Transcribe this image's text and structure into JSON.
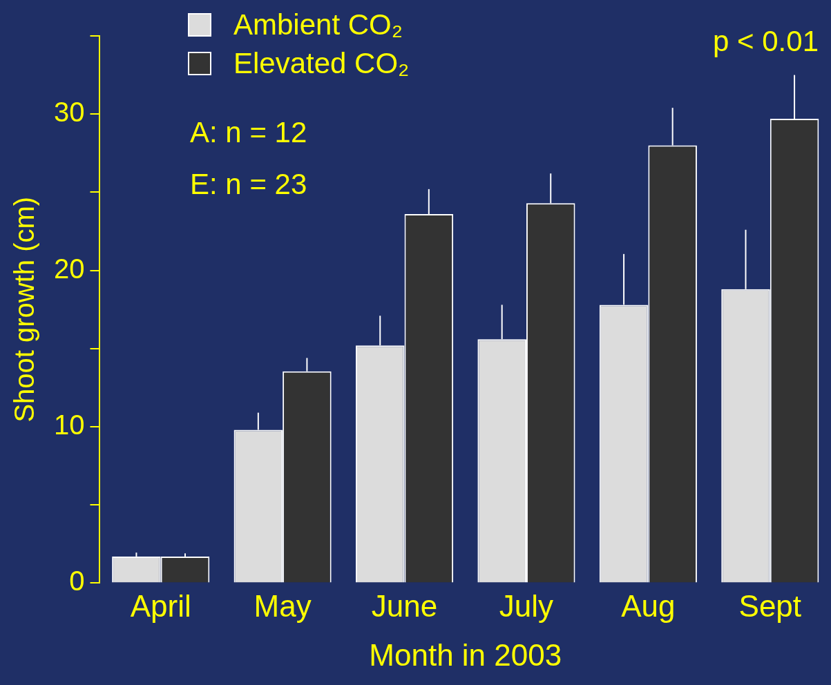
{
  "chart_data": {
    "type": "bar",
    "xlabel": "Month in 2003",
    "ylabel": "Shoot growth (cm)",
    "categories": [
      "April",
      "May",
      "June",
      "July",
      "Aug",
      "Sept"
    ],
    "series": [
      {
        "name": "Ambient CO₂",
        "color": "#dcdcdc",
        "values": [
          1.7,
          9.8,
          15.2,
          15.6,
          17.8,
          18.8
        ],
        "errors": [
          [
            1.7,
            1.95
          ],
          [
            9.8,
            10.9
          ],
          [
            15.2,
            17.1
          ],
          [
            15.6,
            17.8
          ],
          [
            17.8,
            21.05
          ],
          [
            18.8,
            22.6
          ]
        ]
      },
      {
        "name": "Elevated CO₂",
        "color": "#333333",
        "values": [
          1.7,
          13.55,
          23.6,
          24.3,
          28.0,
          29.7
        ],
        "errors": [
          [
            1.7,
            1.9
          ],
          [
            13.55,
            14.4
          ],
          [
            23.6,
            25.2
          ],
          [
            24.3,
            26.2
          ],
          [
            28.0,
            30.4
          ],
          [
            29.7,
            32.5
          ]
        ]
      }
    ],
    "ylim": [
      0,
      35
    ],
    "yticks": [
      0,
      {
        "value": 5,
        "label": null
      },
      10,
      {
        "value": 15,
        "label": null
      },
      20,
      {
        "value": 25,
        "label": null
      },
      30,
      {
        "value": 35,
        "label": null
      }
    ],
    "grid": false,
    "legend": "top left",
    "annotations": [
      "A: n = 12",
      "E: n = 23",
      "p < 0.01"
    ]
  }
}
